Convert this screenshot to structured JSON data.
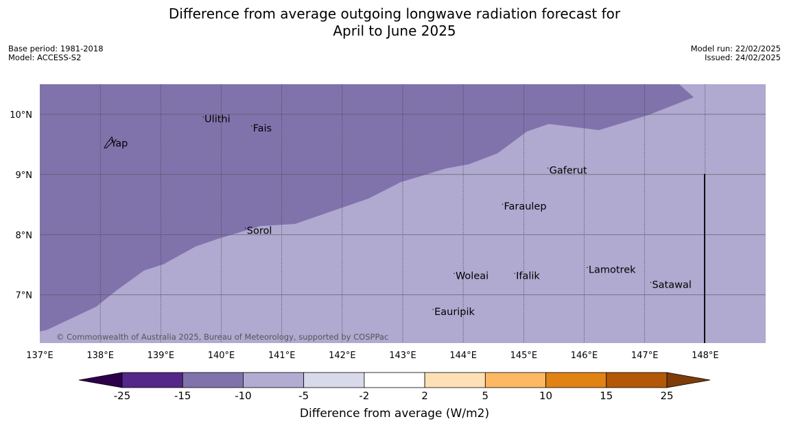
{
  "title_line1": "Difference from average outgoing longwave radiation forecast for",
  "title_line2": "April to June 2025",
  "meta_left": [
    "Base period: 1981-2018",
    "Model: ACCESS-S2"
  ],
  "meta_right": [
    "Model run: 22/02/2025",
    "Issued: 24/02/2025"
  ],
  "copyright": "© Commonwealth of Australia 2025, Bureau of Meteorology, supported by COSPPac",
  "map": {
    "lon_range": [
      137,
      149
    ],
    "lat_range": [
      6.2,
      10.5
    ],
    "lon_ticks": [
      "137°E",
      "138°E",
      "139°E",
      "140°E",
      "141°E",
      "142°E",
      "143°E",
      "144°E",
      "145°E",
      "146°E",
      "147°E",
      "148°E"
    ],
    "lat_ticks": [
      "10°N",
      "9°N",
      "8°N",
      "7°N"
    ],
    "places": [
      {
        "name": "Yap",
        "lon": 138.15,
        "lat": 9.5
      },
      {
        "name": "Ulithi",
        "lon": 139.7,
        "lat": 9.9
      },
      {
        "name": "Fais",
        "lon": 140.5,
        "lat": 9.75
      },
      {
        "name": "Gaferut",
        "lon": 145.4,
        "lat": 9.05
      },
      {
        "name": "Faraulep",
        "lon": 144.65,
        "lat": 8.45
      },
      {
        "name": "Sorol",
        "lon": 140.4,
        "lat": 8.05
      },
      {
        "name": "Lamotrek",
        "lon": 146.05,
        "lat": 7.4
      },
      {
        "name": "Woleai",
        "lon": 143.85,
        "lat": 7.3
      },
      {
        "name": "Ifalik",
        "lon": 144.85,
        "lat": 7.3
      },
      {
        "name": "Satawal",
        "lon": 147.1,
        "lat": 7.15
      },
      {
        "name": "Eauripik",
        "lon": 143.5,
        "lat": 6.7
      }
    ],
    "regions_colors": {
      "-15 to -10": "#8073ac",
      "-10 to -5": "#b0a9d0"
    }
  },
  "colorbar": {
    "label": "Difference from average (W/m2)",
    "ticks": [
      "-25",
      "-15",
      "-10",
      "-5",
      "-2",
      "2",
      "5",
      "10",
      "15",
      "25"
    ],
    "colors": [
      "#2d004b",
      "#542788",
      "#8073ac",
      "#b2abd2",
      "#d8daeb",
      "#ffffff",
      "#fee0b6",
      "#fdb863",
      "#e08214",
      "#b35806",
      "#7f3b08"
    ]
  }
}
